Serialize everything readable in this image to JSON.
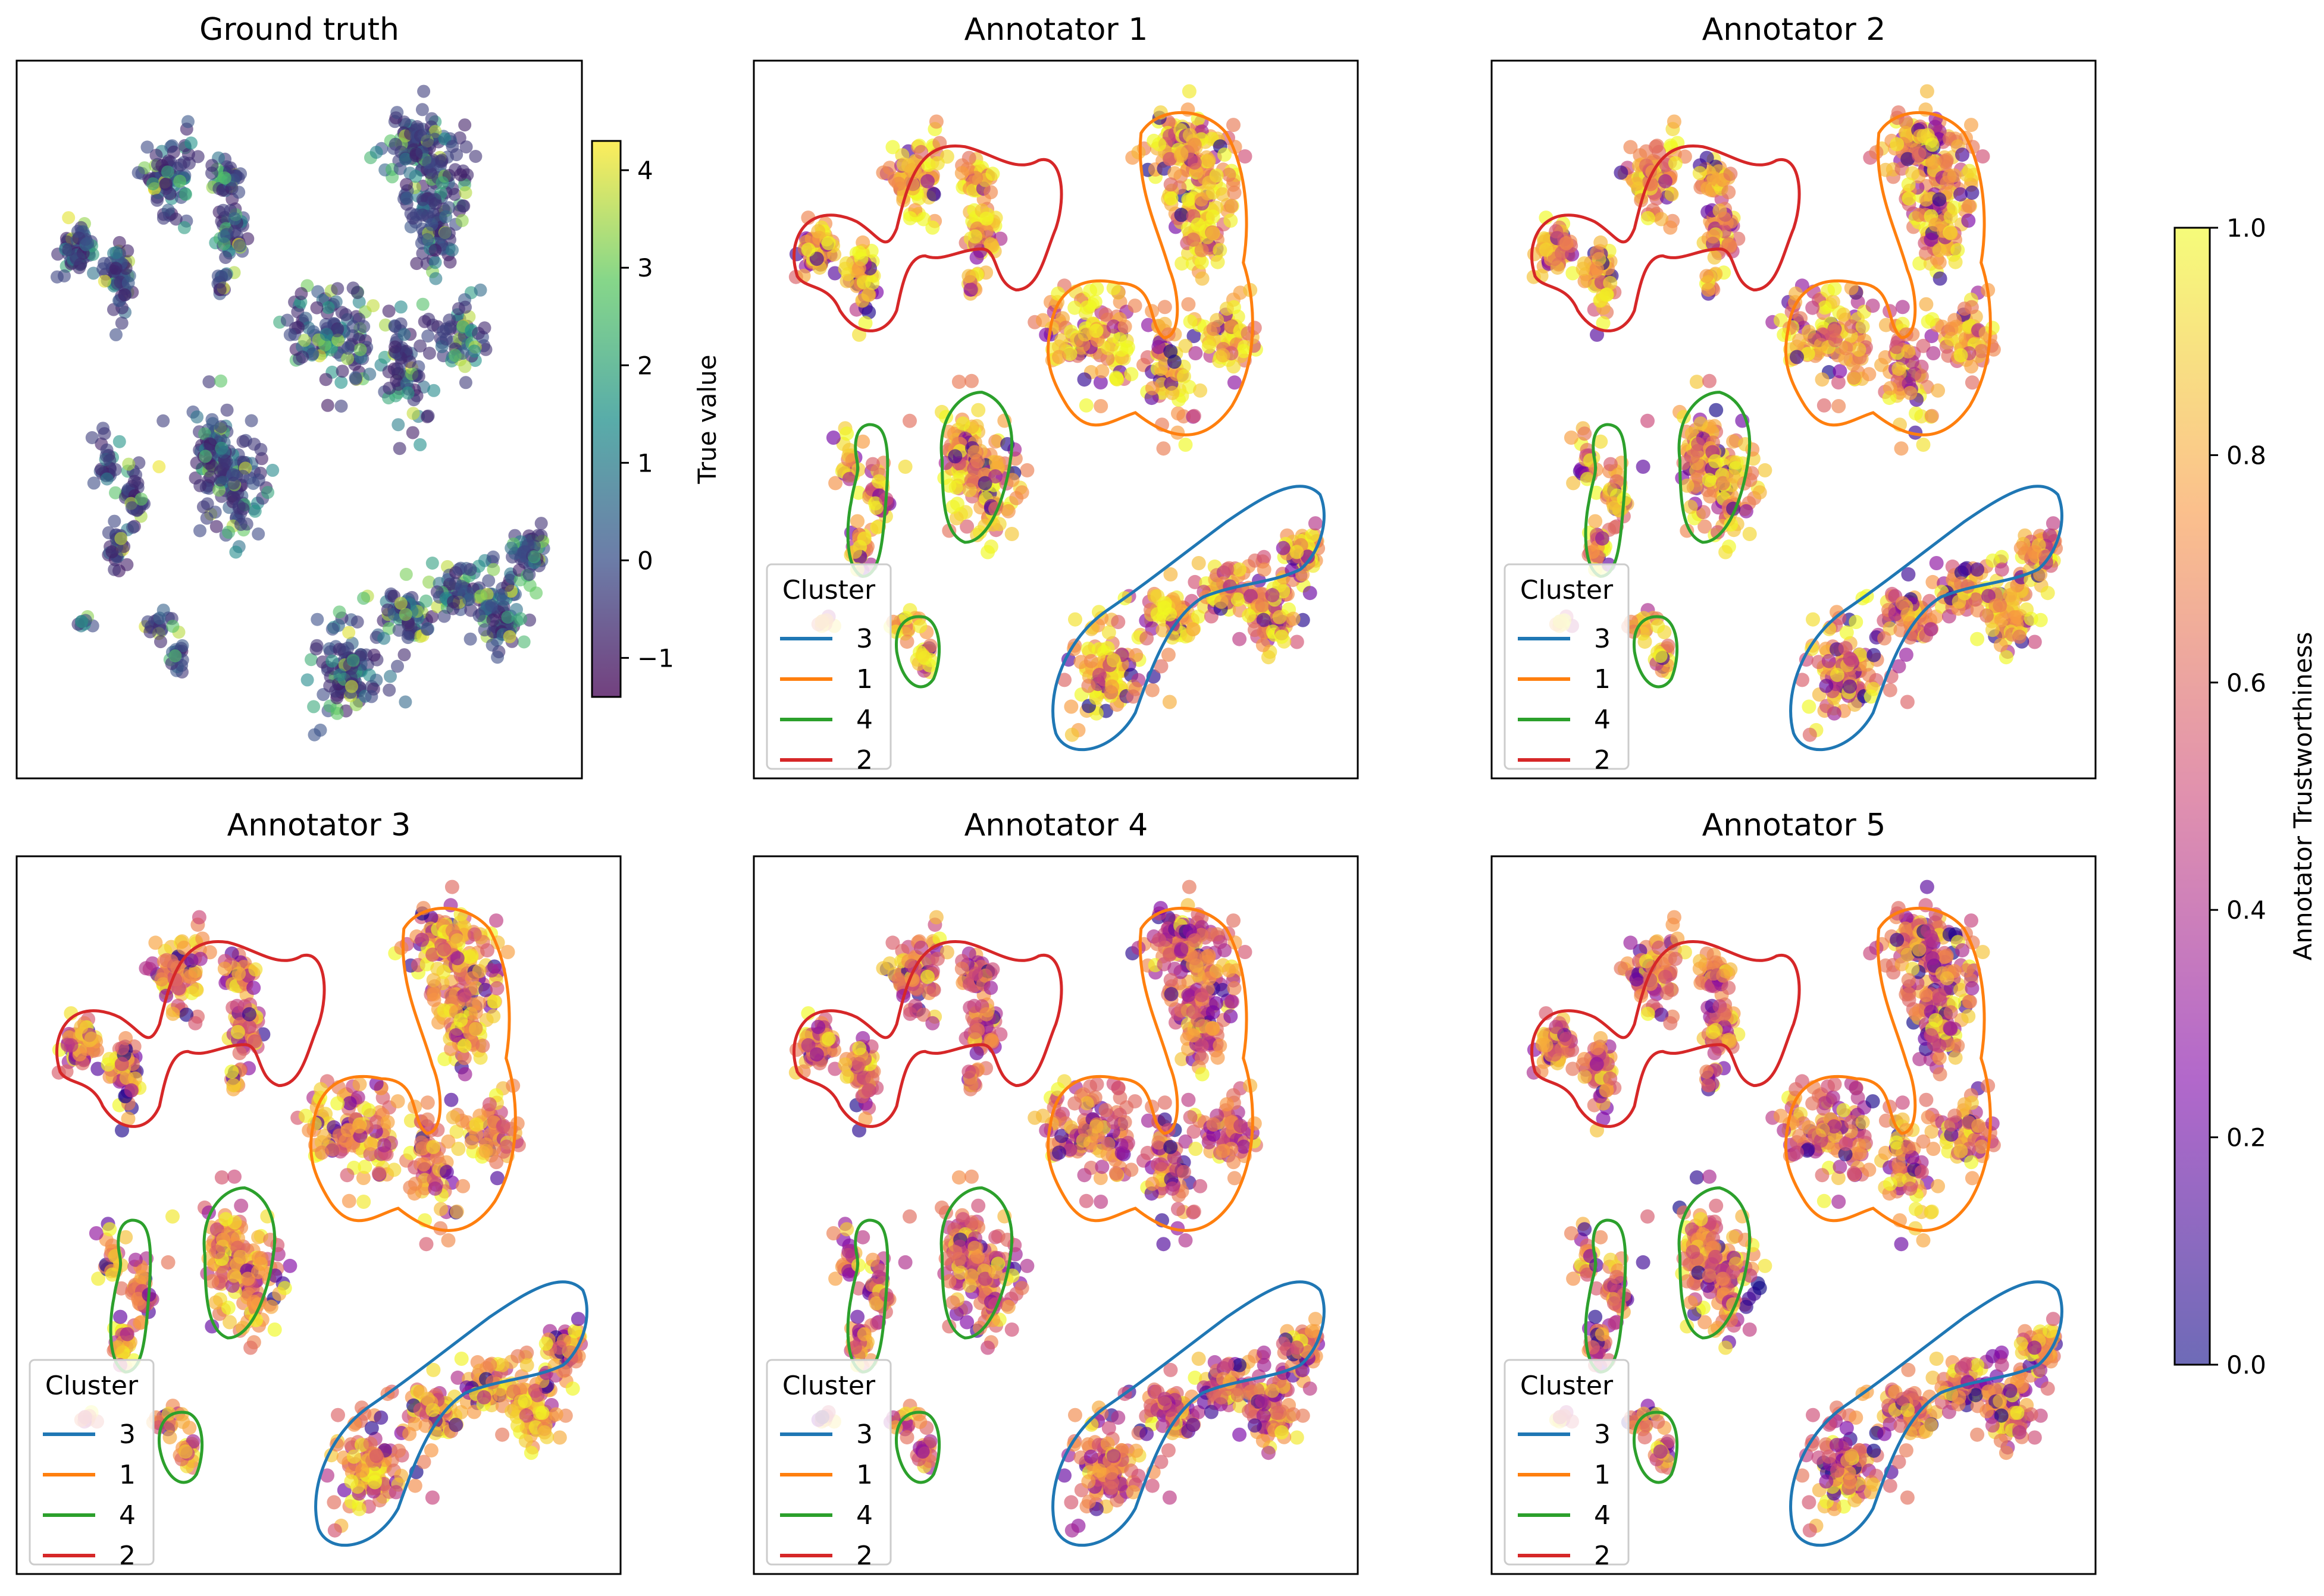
{
  "chart_data": {
    "type": "scatter",
    "description_free": true,
    "panels": [
      {
        "id": "gt",
        "title": "Ground truth",
        "colorbar_label": "True value",
        "colorbar_ticks": [
          "4",
          "3",
          "2",
          "1",
          "0",
          "−1"
        ]
      },
      {
        "id": "a1",
        "title": "Annotator 1"
      },
      {
        "id": "a2",
        "title": "Annotator 2"
      },
      {
        "id": "a3",
        "title": "Annotator 3"
      },
      {
        "id": "a4",
        "title": "Annotator 4"
      },
      {
        "id": "a5",
        "title": "Annotator 5"
      }
    ],
    "legend": {
      "title": "Cluster",
      "entries": [
        {
          "label": "3",
          "color": "#1f77b4"
        },
        {
          "label": "1",
          "color": "#ff7f0e"
        },
        {
          "label": "4",
          "color": "#2ca02c"
        },
        {
          "label": "2",
          "color": "#d62728"
        }
      ]
    },
    "colorbar_trust": {
      "label": "Annotator Trustworthiness",
      "ticks": [
        "1.0",
        "0.8",
        "0.6",
        "0.4",
        "0.2",
        "0.0"
      ]
    },
    "true_value_range": [
      -1.4,
      4.3
    ],
    "trust_range": [
      0.0,
      1.0
    ]
  },
  "colors": {
    "viridis": [
      "#440154",
      "#3b528b",
      "#21918c",
      "#5ec962",
      "#fde725"
    ],
    "plasma": [
      "#0d0887",
      "#7e03a8",
      "#cc4778",
      "#f89540",
      "#f0f921"
    ]
  }
}
